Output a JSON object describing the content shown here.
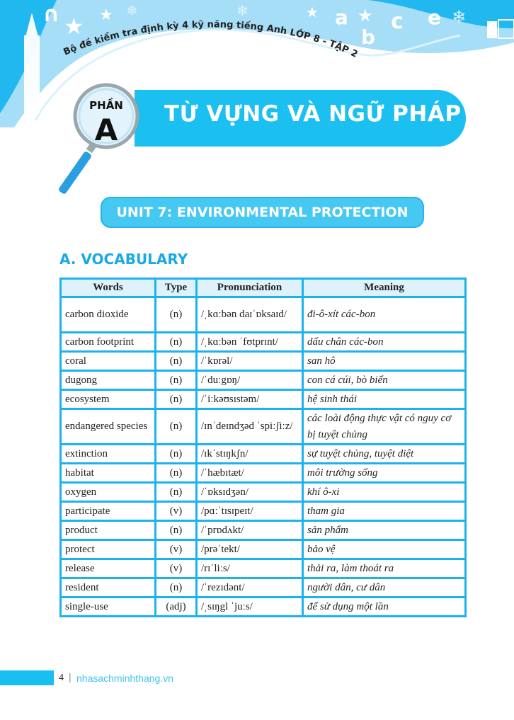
{
  "header": {
    "book_title": "Bộ đề kiểm tra định kỳ 4 kỹ năng tiếng Anh LỚP 8 - TẬP 2"
  },
  "part": {
    "label": "PHẦN",
    "letter": "A",
    "title": "TỪ VỰNG VÀ NGỮ PHÁP"
  },
  "unit": {
    "title": "UNIT 7: ENVIRONMENTAL PROTECTION"
  },
  "section": {
    "title": "A. VOCABULARY"
  },
  "table": {
    "headers": [
      "Words",
      "Type",
      "Pronunciation",
      "Meaning"
    ],
    "rows": [
      [
        "carbon dioxide",
        "(n)",
        "/ˌkɑːbən daɪˈɒksaɪd/",
        "đi-ô-xít các-bon"
      ],
      [
        "carbon footprint",
        "(n)",
        "/ˌkɑːbən ˈfʊtprɪnt/",
        "dấu chân các-bon"
      ],
      [
        "coral",
        "(n)",
        "/ˈkɒrəl/",
        "san hô"
      ],
      [
        "dugong",
        "(n)",
        "/ˈduːgɒŋ/",
        "con cá cúi, bò biển"
      ],
      [
        "ecosystem",
        "(n)",
        "/ˈiːkəʊsɪstəm/",
        "hệ sinh thái"
      ],
      [
        "endangered species",
        "(n)",
        "/ɪnˈdeɪndʒəd ˈspiːʃiːz/",
        "các loài động thực vật có nguy cơ bị tuyệt chủng"
      ],
      [
        "extinction",
        "(n)",
        "/ɪkˈstɪŋkʃn/",
        "sự tuyệt chủng, tuyệt diệt"
      ],
      [
        "habitat",
        "(n)",
        "/ˈhæbɪtæt/",
        "môi trường sống"
      ],
      [
        "oxygen",
        "(n)",
        "/ˈɒksɪdʒən/",
        "khí ô-xi"
      ],
      [
        "participate",
        "(v)",
        "/pɑːˈtɪsɪpeɪt/",
        "tham gia"
      ],
      [
        "product",
        "(n)",
        "/ˈprɒdʌkt/",
        "sản phẩm"
      ],
      [
        "protect",
        "(v)",
        "/prəˈtekt/",
        "bảo vệ"
      ],
      [
        "release",
        "(v)",
        "/rɪˈliːs/",
        "thải ra, làm thoát ra"
      ],
      [
        "resident",
        "(n)",
        "/ˈrezɪdənt/",
        "người dân, cư dân"
      ],
      [
        "single-use",
        "(adj)",
        "/ˌsɪŋgl ˈjuːs/",
        "để sử dụng một lần"
      ]
    ]
  },
  "footer": {
    "page_number": "4",
    "separator": "|",
    "website": "nhasachminhthang.vn"
  },
  "colors": {
    "accent": "#1bbff0",
    "table_border": "#1bb3ea",
    "header_fill": "#dff2fb"
  }
}
